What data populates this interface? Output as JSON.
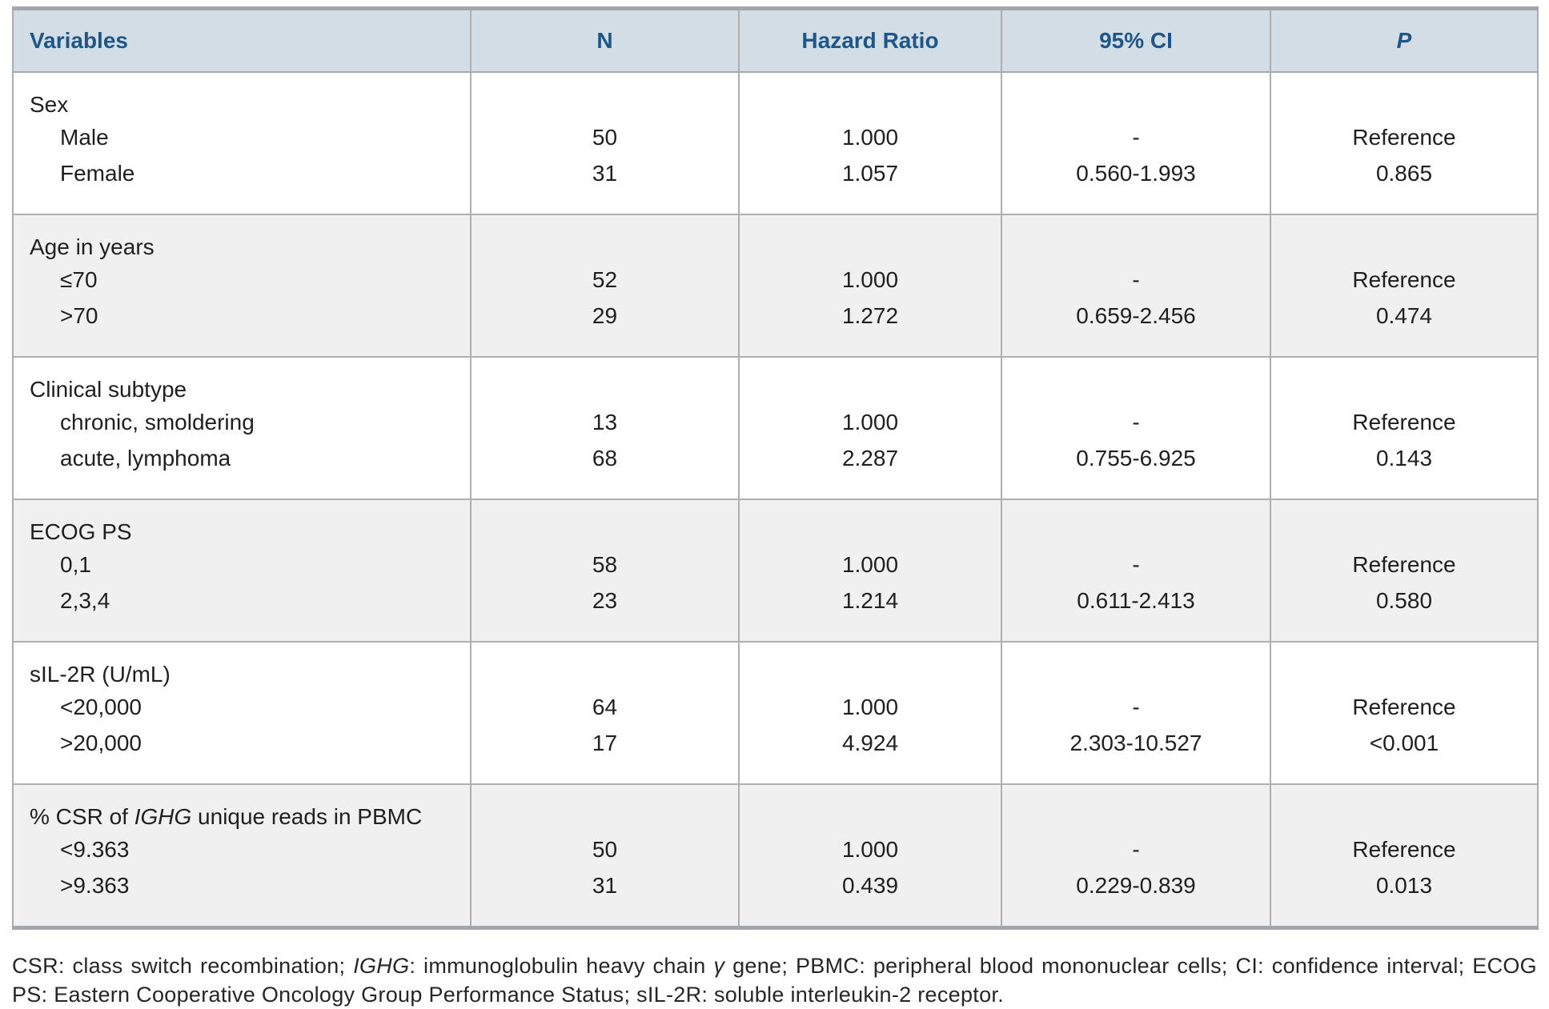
{
  "table": {
    "headers": [
      "Variables",
      "N",
      "Hazard Ratio",
      "95% CI",
      "P"
    ],
    "sections": [
      {
        "group_parts": [
          {
            "text": "Sex",
            "italic": false
          }
        ],
        "rows": [
          {
            "label": "Male",
            "n": "50",
            "hr": "1.000",
            "ci": "-",
            "p": "Reference"
          },
          {
            "label": "Female",
            "n": "31",
            "hr": "1.057",
            "ci": "0.560-1.993",
            "p": "0.865"
          }
        ]
      },
      {
        "group_parts": [
          {
            "text": "Age in years",
            "italic": false
          }
        ],
        "rows": [
          {
            "label": "≤70",
            "n": "52",
            "hr": "1.000",
            "ci": "-",
            "p": "Reference"
          },
          {
            "label": ">70",
            "n": "29",
            "hr": "1.272",
            "ci": "0.659-2.456",
            "p": "0.474"
          }
        ]
      },
      {
        "group_parts": [
          {
            "text": "Clinical subtype",
            "italic": false
          }
        ],
        "rows": [
          {
            "label": "chronic, smoldering",
            "n": "13",
            "hr": "1.000",
            "ci": "-",
            "p": "Reference"
          },
          {
            "label": "acute, lymphoma",
            "n": "68",
            "hr": "2.287",
            "ci": "0.755-6.925",
            "p": "0.143"
          }
        ]
      },
      {
        "group_parts": [
          {
            "text": "ECOG PS",
            "italic": false
          }
        ],
        "rows": [
          {
            "label": "0,1",
            "n": "58",
            "hr": "1.000",
            "ci": "-",
            "p": "Reference"
          },
          {
            "label": "2,3,4",
            "n": "23",
            "hr": "1.214",
            "ci": "0.611-2.413",
            "p": "0.580"
          }
        ]
      },
      {
        "group_parts": [
          {
            "text": "sIL-2R (U/mL)",
            "italic": false
          }
        ],
        "rows": [
          {
            "label": "<20,000",
            "n": "64",
            "hr": "1.000",
            "ci": "-",
            "p": "Reference"
          },
          {
            "label": ">20,000",
            "n": "17",
            "hr": "4.924",
            "ci": "2.303-10.527",
            "p": "<0.001"
          }
        ]
      },
      {
        "group_parts": [
          {
            "text": "% CSR of ",
            "italic": false
          },
          {
            "text": "IGHG",
            "italic": true
          },
          {
            "text": " unique reads in PBMC",
            "italic": false
          }
        ],
        "rows": [
          {
            "label": "<9.363",
            "n": "50",
            "hr": "1.000",
            "ci": "-",
            "p": "Reference"
          },
          {
            "label": ">9.363",
            "n": "31",
            "hr": "0.439",
            "ci": "0.229-0.839",
            "p": "0.013"
          }
        ]
      }
    ]
  },
  "footnote": {
    "parts": [
      {
        "text": "CSR: class switch recombination; ",
        "italic": false
      },
      {
        "text": "IGHG",
        "italic": true
      },
      {
        "text": ": immunoglobulin heavy chain ",
        "italic": false
      },
      {
        "text": "γ",
        "italic": true
      },
      {
        "text": " gene; PBMC: peripheral blood mononuclear cells; CI: confidence interval; ECOG PS: Eastern Cooperative Oncology Group Performance Status; sIL-2R: soluble interleukin-2 receptor.",
        "italic": false
      }
    ]
  },
  "colors": {
    "header_background": "#d3dde6",
    "header_text": "#1e5687",
    "alt_section_background": "#f0f0f0",
    "border_thick": "#a3a7aa",
    "border_thin": "#adb0b3",
    "body_text": "#1f1f1f"
  }
}
